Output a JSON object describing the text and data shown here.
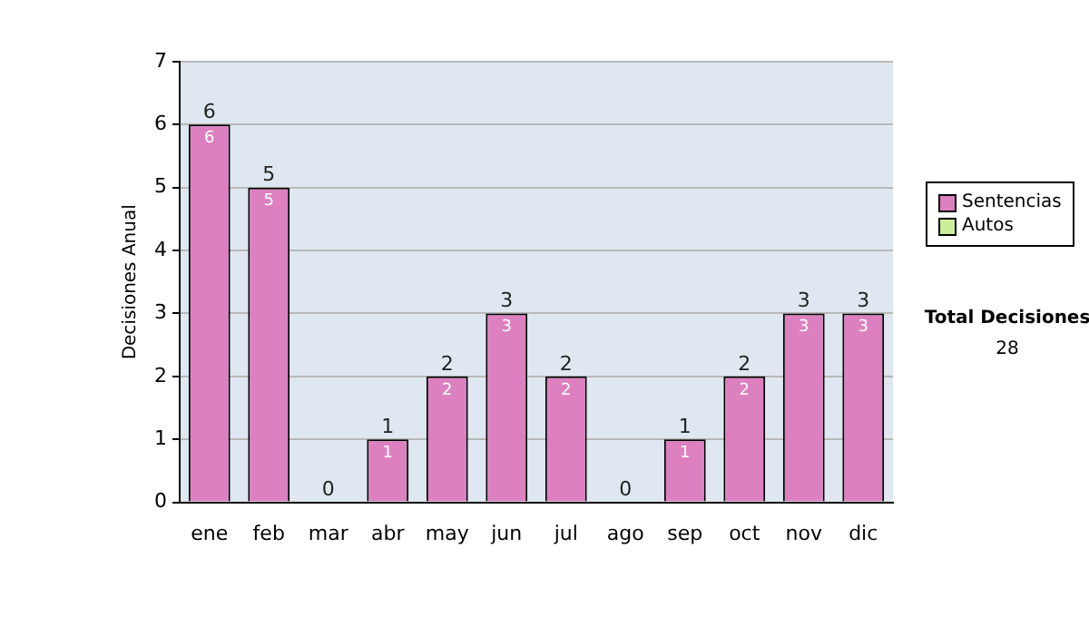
{
  "chart_data": {
    "type": "bar",
    "stacked": true,
    "ylabel": "Decisiones Anual",
    "categories": [
      "ene",
      "feb",
      "mar",
      "abr",
      "may",
      "jun",
      "jul",
      "ago",
      "sep",
      "oct",
      "nov",
      "dic"
    ],
    "series": [
      {
        "name": "Sentencias",
        "color": "#dd80c0",
        "values": [
          6,
          5,
          0,
          1,
          2,
          3,
          2,
          0,
          1,
          2,
          3,
          3
        ],
        "value_labels": [
          "6",
          "5",
          null,
          "1",
          "2",
          "3",
          "2",
          null,
          "1",
          "2",
          "3",
          "3"
        ]
      },
      {
        "name": "Autos",
        "color": "#ccee99",
        "values": [
          0,
          0,
          0,
          0,
          0,
          0,
          0,
          0,
          0,
          0,
          0,
          0
        ]
      }
    ],
    "totals": [
      "6",
      "5",
      "0",
      "1",
      "2",
      "3",
      "2",
      "0",
      "1",
      "2",
      "3",
      "3"
    ],
    "ylim": [
      0,
      7
    ],
    "yticks": [
      0,
      1,
      2,
      3,
      4,
      5,
      6,
      7
    ],
    "grid": "y",
    "legend": "right",
    "annotations": [
      "Total Decisiones",
      "28"
    ]
  }
}
